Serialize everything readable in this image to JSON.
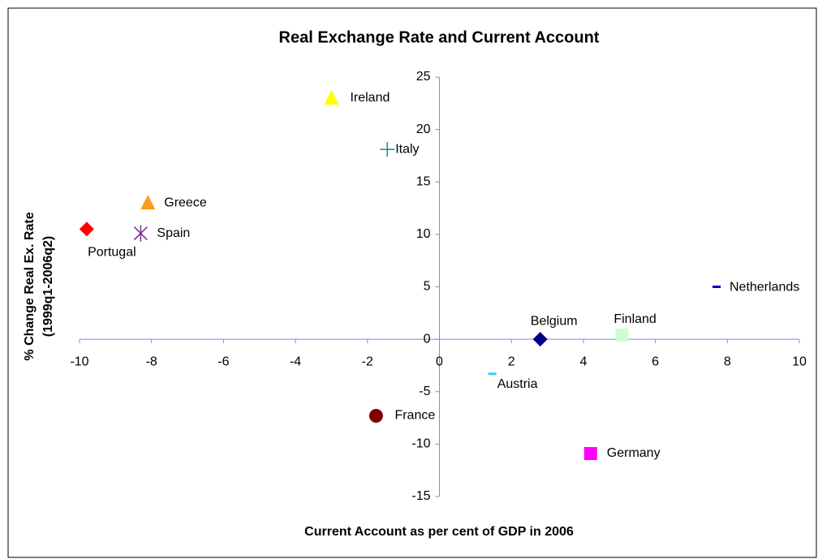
{
  "chart_data": {
    "type": "scatter",
    "title": "Real Exchange Rate and Current Account",
    "x_label": "Current Account as per cent of GDP in 2006",
    "y_label": [
      "% Change Real Ex. Rate",
      "(1999q1-2006q2)"
    ],
    "xlim": [
      -10,
      10
    ],
    "ylim": [
      -15,
      25
    ],
    "xticks": [
      -10,
      -8,
      -6,
      -4,
      -2,
      0,
      2,
      4,
      6,
      8,
      10
    ],
    "yticks": [
      -15,
      -10,
      -5,
      0,
      5,
      10,
      15,
      20,
      25
    ],
    "axis_color": "#7b8fd6",
    "series": [
      {
        "name": "Portugal",
        "color": "#ff0000",
        "marker": "diamond",
        "x": [
          -9.8
        ],
        "values": [
          10.5
        ]
      },
      {
        "name": "Spain",
        "color": "#7b2c8c",
        "marker": "asterisk",
        "x": [
          -8.3
        ],
        "values": [
          10.1
        ]
      },
      {
        "name": "Greece",
        "color": "#ff9a1a",
        "marker": "triangle",
        "x": [
          -8.1
        ],
        "values": [
          13
        ]
      },
      {
        "name": "Ireland",
        "color": "#ffff00",
        "marker": "triangle",
        "x": [
          -3
        ],
        "values": [
          23
        ]
      },
      {
        "name": "Italy",
        "color": "#1f8a8a",
        "marker": "plus",
        "x": [
          -1.45
        ],
        "values": [
          18.1
        ]
      },
      {
        "name": "France",
        "color": "#800000",
        "marker": "circle",
        "x": [
          -1.76
        ],
        "values": [
          -7.3
        ]
      },
      {
        "name": "Austria",
        "color": "#33ccff",
        "marker": "dash",
        "x": [
          1.47
        ],
        "values": [
          -3.3
        ]
      },
      {
        "name": "Belgium",
        "color": "#000080",
        "marker": "diamond",
        "x": [
          2.8
        ],
        "values": [
          0
        ]
      },
      {
        "name": "Finland",
        "color": "#ccffcc",
        "marker": "square",
        "x": [
          5.07
        ],
        "values": [
          0.4
        ]
      },
      {
        "name": "Germany",
        "color": "#ff00ff",
        "marker": "square",
        "x": [
          4.2
        ],
        "values": [
          -10.9
        ]
      },
      {
        "name": "Netherlands",
        "color": "#0000cc",
        "marker": "dash",
        "x": [
          7.7
        ],
        "values": [
          5
        ]
      }
    ]
  }
}
